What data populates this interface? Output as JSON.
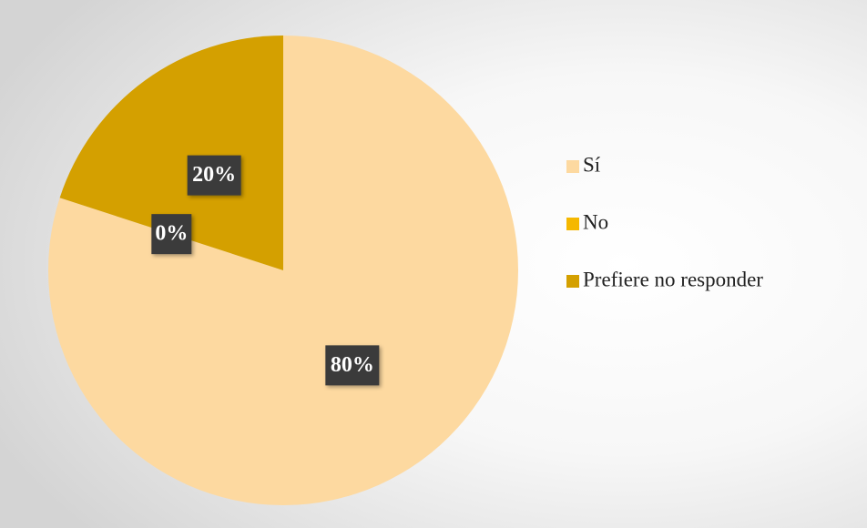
{
  "chart_data": {
    "type": "pie",
    "categories": [
      "Sí",
      "No",
      "Prefiere no responder"
    ],
    "values": [
      80,
      0,
      20
    ],
    "value_labels": [
      "80%",
      "0%",
      "20%"
    ],
    "colors": [
      "#fdd9a0",
      "#f5b800",
      "#d4a000"
    ]
  }
}
